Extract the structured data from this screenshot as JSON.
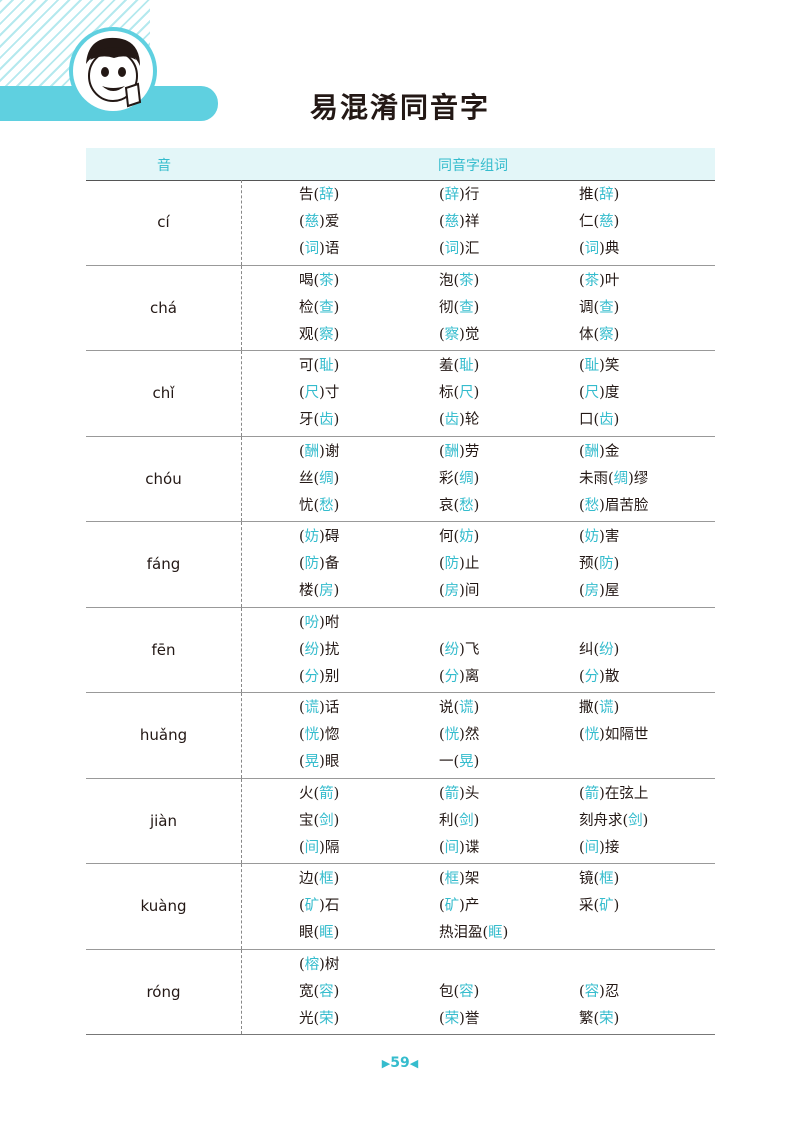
{
  "page_title": "易混淆同音字",
  "header": {
    "col_pinyin": "音",
    "col_words": "同音字组词"
  },
  "colors": {
    "accent": "#35bccd",
    "tab": "#5fd0e0",
    "header_bg": "#e3f6f8"
  },
  "rows": [
    {
      "pinyin": "cí",
      "words": [
        [
          "告",
          "辞",
          ""
        ],
        [
          "",
          "辞",
          "行"
        ],
        [
          "推",
          "辞",
          ""
        ],
        [
          "",
          "慈",
          "爱"
        ],
        [
          "",
          "慈",
          "祥"
        ],
        [
          "仁",
          "慈",
          ""
        ],
        [
          "",
          "词",
          "语"
        ],
        [
          "",
          "词",
          "汇"
        ],
        [
          "",
          "词",
          "典"
        ]
      ]
    },
    {
      "pinyin": "chá",
      "words": [
        [
          "喝",
          "茶",
          ""
        ],
        [
          "泡",
          "茶",
          ""
        ],
        [
          "",
          "茶",
          "叶"
        ],
        [
          "检",
          "查",
          ""
        ],
        [
          "彻",
          "查",
          ""
        ],
        [
          "调",
          "查",
          ""
        ],
        [
          "观",
          "察",
          ""
        ],
        [
          "",
          "察",
          "觉"
        ],
        [
          "体",
          "察",
          ""
        ]
      ]
    },
    {
      "pinyin": "chǐ",
      "words": [
        [
          "可",
          "耻",
          ""
        ],
        [
          "羞",
          "耻",
          ""
        ],
        [
          "",
          "耻",
          "笑"
        ],
        [
          "",
          "尺",
          "寸"
        ],
        [
          "标",
          "尺",
          ""
        ],
        [
          "",
          "尺",
          "度"
        ],
        [
          "牙",
          "齿",
          ""
        ],
        [
          "",
          "齿",
          "轮"
        ],
        [
          "口",
          "齿",
          ""
        ]
      ]
    },
    {
      "pinyin": "chóu",
      "words": [
        [
          "",
          "酬",
          "谢"
        ],
        [
          "",
          "酬",
          "劳"
        ],
        [
          "",
          "酬",
          "金"
        ],
        [
          "丝",
          "绸",
          ""
        ],
        [
          "彩",
          "绸",
          ""
        ],
        [
          "未雨",
          "绸",
          "缪"
        ],
        [
          "忧",
          "愁",
          ""
        ],
        [
          "哀",
          "愁",
          ""
        ],
        [
          "",
          "愁",
          "眉苦脸"
        ]
      ]
    },
    {
      "pinyin": "fáng",
      "words": [
        [
          "",
          "妨",
          "碍"
        ],
        [
          "何",
          "妨",
          ""
        ],
        [
          "",
          "妨",
          "害"
        ],
        [
          "",
          "防",
          "备"
        ],
        [
          "",
          "防",
          "止"
        ],
        [
          "预",
          "防",
          ""
        ],
        [
          "楼",
          "房",
          ""
        ],
        [
          "",
          "房",
          "间"
        ],
        [
          "",
          "房",
          "屋"
        ]
      ]
    },
    {
      "pinyin": "fēn",
      "words": [
        [
          "",
          "吩",
          "咐"
        ],
        null,
        null,
        [
          "",
          "纷",
          "扰"
        ],
        [
          "",
          "纷",
          "飞"
        ],
        [
          "纠",
          "纷",
          ""
        ],
        [
          "",
          "分",
          "别"
        ],
        [
          "",
          "分",
          "离"
        ],
        [
          "",
          "分",
          "散"
        ]
      ]
    },
    {
      "pinyin": "huǎng",
      "words": [
        [
          "",
          "谎",
          "话"
        ],
        [
          "说",
          "谎",
          ""
        ],
        [
          "撒",
          "谎",
          ""
        ],
        [
          "",
          "恍",
          "惚"
        ],
        [
          "",
          "恍",
          "然"
        ],
        [
          "",
          "恍",
          "如隔世"
        ],
        [
          "",
          "晃",
          "眼"
        ],
        [
          "一",
          "晃",
          ""
        ],
        null
      ]
    },
    {
      "pinyin": "jiàn",
      "words": [
        [
          "火",
          "箭",
          ""
        ],
        [
          "",
          "箭",
          "头"
        ],
        [
          "",
          "箭",
          "在弦上"
        ],
        [
          "宝",
          "剑",
          ""
        ],
        [
          "利",
          "剑",
          ""
        ],
        [
          "刻舟求",
          "剑",
          ""
        ],
        [
          "",
          "间",
          "隔"
        ],
        [
          "",
          "间",
          "谍"
        ],
        [
          "",
          "间",
          "接"
        ]
      ]
    },
    {
      "pinyin": "kuàng",
      "words": [
        [
          "边",
          "框",
          ""
        ],
        [
          "",
          "框",
          "架"
        ],
        [
          "镜",
          "框",
          ""
        ],
        [
          "",
          "矿",
          "石"
        ],
        [
          "",
          "矿",
          "产"
        ],
        [
          "采",
          "矿",
          ""
        ],
        [
          "眼",
          "眶",
          ""
        ],
        [
          "热泪盈",
          "眶",
          ""
        ],
        null
      ]
    },
    {
      "pinyin": "róng",
      "words": [
        [
          "",
          "榕",
          "树"
        ],
        null,
        null,
        [
          "宽",
          "容",
          ""
        ],
        [
          "包",
          "容",
          ""
        ],
        [
          "",
          "容",
          "忍"
        ],
        [
          "光",
          "荣",
          ""
        ],
        [
          "",
          "荣",
          "誉"
        ],
        [
          "繁",
          "荣",
          ""
        ]
      ]
    }
  ],
  "footer": {
    "page_number": "59",
    "left_mark": "▶",
    "right_mark": "◀"
  }
}
